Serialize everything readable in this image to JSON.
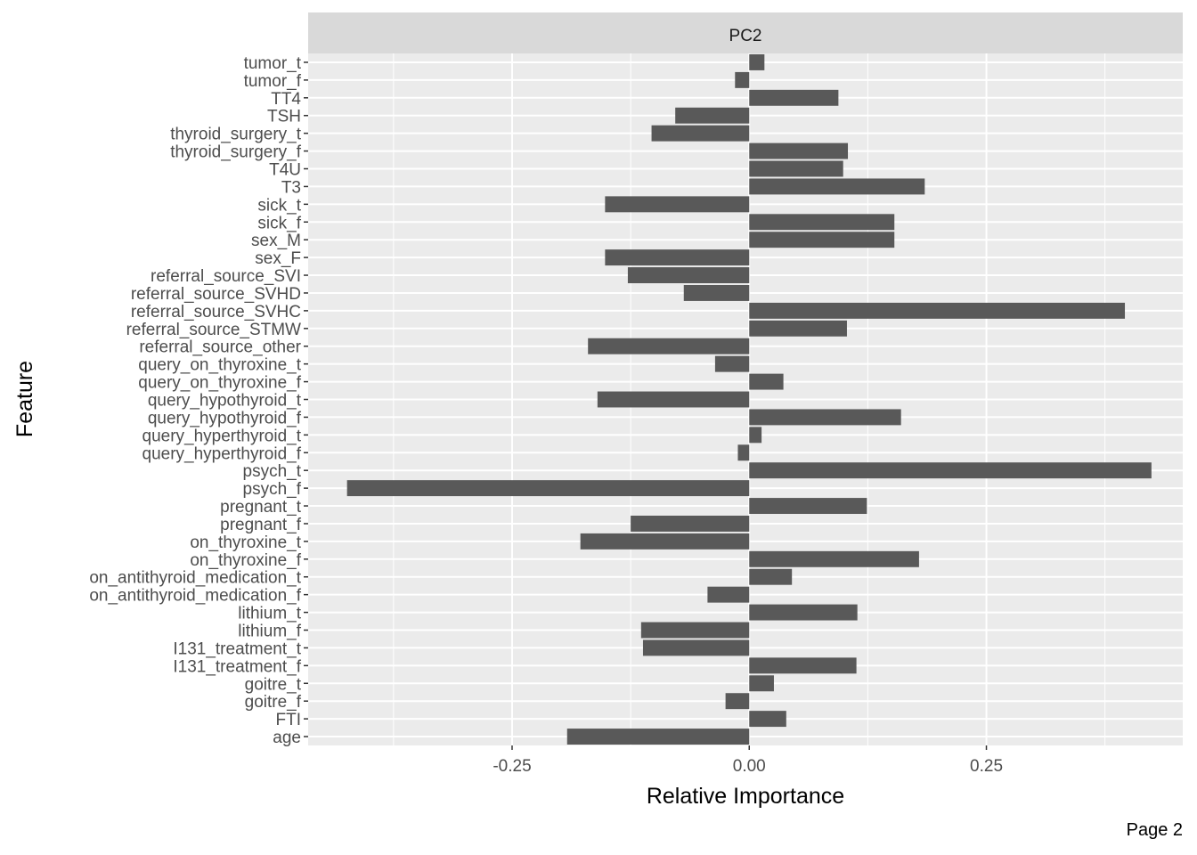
{
  "chart_data": {
    "type": "bar",
    "orientation": "horizontal",
    "facet_label": "PC2",
    "xlabel": "Relative Importance",
    "ylabel": "Feature",
    "xlim": [
      -0.465,
      0.457
    ],
    "x_ticks": [
      -0.25,
      0.0,
      0.25
    ],
    "x_tick_labels": [
      "-0.25",
      "0.00",
      "0.25"
    ],
    "grid": true,
    "bar_color": "#595959",
    "panel_bg": "#ebebeb",
    "strip_bg": "#d9d9d9",
    "categories": [
      "tumor_t",
      "tumor_f",
      "TT4",
      "TSH",
      "thyroid_surgery_t",
      "thyroid_surgery_f",
      "T4U",
      "T3",
      "sick_t",
      "sick_f",
      "sex_M",
      "sex_F",
      "referral_source_SVI",
      "referral_source_SVHD",
      "referral_source_SVHC",
      "referral_source_STMW",
      "referral_source_other",
      "query_on_thyroxine_t",
      "query_on_thyroxine_f",
      "query_hypothyroid_t",
      "query_hypothyroid_f",
      "query_hyperthyroid_t",
      "query_hyperthyroid_f",
      "psych_t",
      "psych_f",
      "pregnant_t",
      "pregnant_f",
      "on_thyroxine_t",
      "on_thyroxine_f",
      "on_antithyroid_medication_t",
      "on_antithyroid_medication_f",
      "lithium_t",
      "lithium_f",
      "I131_treatment_t",
      "I131_treatment_f",
      "goitre_t",
      "goitre_f",
      "FTI",
      "age"
    ],
    "values": [
      0.016,
      -0.015,
      0.094,
      -0.078,
      -0.103,
      0.104,
      0.099,
      0.185,
      -0.152,
      0.153,
      0.153,
      -0.152,
      -0.128,
      -0.069,
      0.396,
      0.103,
      -0.17,
      -0.036,
      0.036,
      -0.16,
      0.16,
      0.013,
      -0.012,
      0.424,
      -0.424,
      0.124,
      -0.125,
      -0.178,
      0.179,
      0.045,
      -0.044,
      0.114,
      -0.114,
      -0.112,
      0.113,
      0.026,
      -0.025,
      0.039,
      -0.192
    ]
  },
  "footer": {
    "page_label": "Page 2"
  }
}
